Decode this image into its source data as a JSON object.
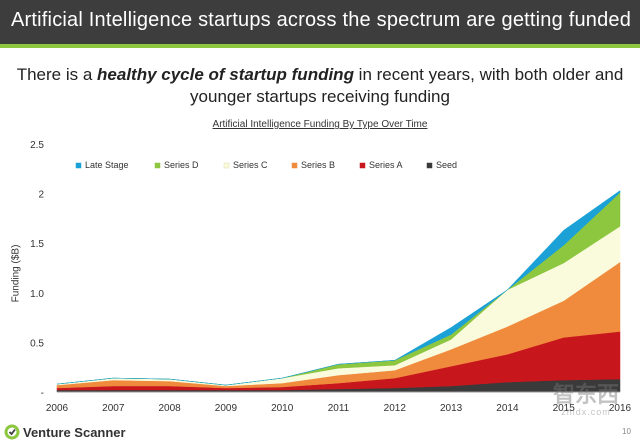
{
  "header": {
    "title": "Artificial Intelligence startups across the spectrum are getting funded"
  },
  "subtitle": {
    "before": "There is a ",
    "emphasis": "healthy cycle of startup funding",
    "after": " in recent years, with both older and younger startups receiving funding"
  },
  "chart_data": {
    "type": "area",
    "stacked": true,
    "title": "Artificial Intelligence Funding By Type Over Time",
    "xlabel": "",
    "ylabel": "Funding ($B)",
    "ylim": [
      0,
      2.5
    ],
    "yticks": [
      "2.5",
      "2",
      "1.5",
      "1.0",
      "0.5",
      "-"
    ],
    "ytick_values": [
      2.5,
      2.0,
      1.5,
      1.0,
      0.5,
      0
    ],
    "x": [
      2006,
      2007,
      2008,
      2009,
      2010,
      2011,
      2012,
      2013,
      2014,
      2015,
      2016
    ],
    "legend_position": "top",
    "series": [
      {
        "name": "Late Stage",
        "color": "#1ba1d6",
        "values": [
          0.0,
          0.0,
          0.0,
          0.0,
          0.0,
          0.0,
          0.0,
          0.07,
          0.0,
          0.15,
          0.02
        ]
      },
      {
        "name": "Series D",
        "color": "#8dc63f",
        "values": [
          0.0,
          0.0,
          0.0,
          0.0,
          0.0,
          0.04,
          0.05,
          0.05,
          0.0,
          0.18,
          0.34
        ]
      },
      {
        "name": "Series C",
        "color": "#fafadc",
        "values": [
          0.01,
          0.02,
          0.02,
          0.01,
          0.05,
          0.07,
          0.05,
          0.1,
          0.37,
          0.38,
          0.36
        ]
      },
      {
        "name": "Series B",
        "color": "#f08a3c",
        "values": [
          0.03,
          0.06,
          0.05,
          0.02,
          0.04,
          0.08,
          0.08,
          0.17,
          0.28,
          0.37,
          0.7
        ]
      },
      {
        "name": "Series A",
        "color": "#c8161d",
        "values": [
          0.02,
          0.04,
          0.04,
          0.02,
          0.03,
          0.06,
          0.1,
          0.2,
          0.28,
          0.43,
          0.48
        ]
      },
      {
        "name": "Seed",
        "color": "#3a3a3a",
        "values": [
          0.02,
          0.02,
          0.02,
          0.02,
          0.02,
          0.03,
          0.04,
          0.06,
          0.1,
          0.12,
          0.13
        ]
      }
    ]
  },
  "footer": {
    "logo_text": "Venture Scanner",
    "page": "10"
  },
  "watermark": {
    "main": "智东西",
    "sub": "zhidx.com"
  }
}
